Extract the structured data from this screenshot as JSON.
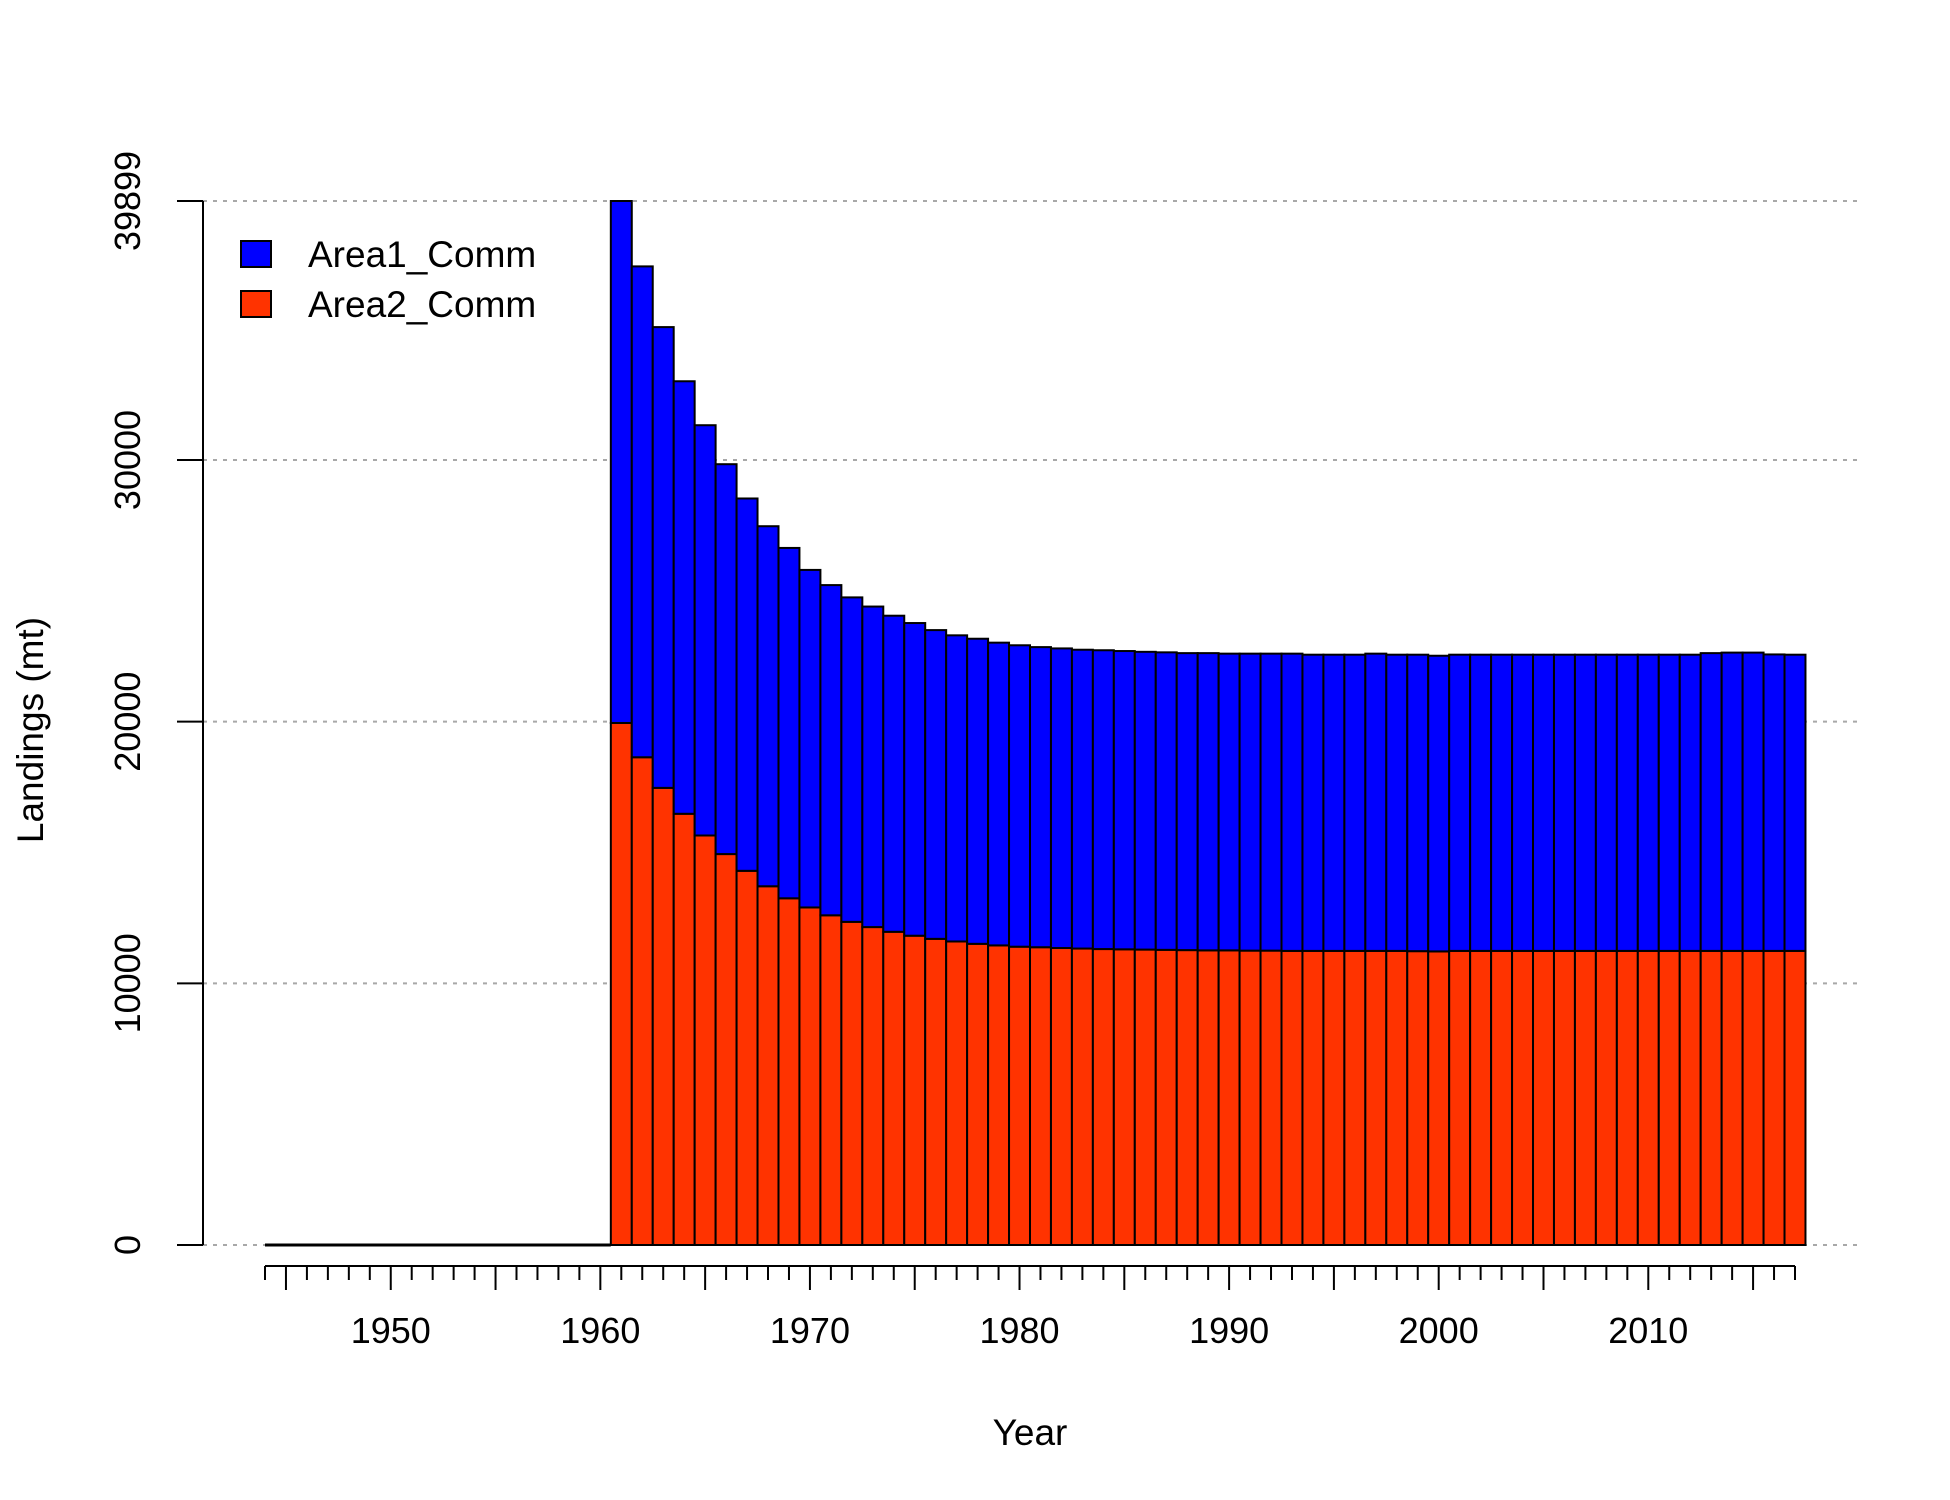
{
  "chart_data": {
    "type": "bar",
    "stacked": true,
    "xlabel": "Year",
    "ylabel": "Landings (mt)",
    "xlim": [
      1944,
      2017
    ],
    "ylim": [
      0,
      39899
    ],
    "y_ticks": [
      0,
      10000,
      20000,
      30000,
      39899
    ],
    "y_tick_labels": [
      "0",
      "10000",
      "20000",
      "30000",
      "39899"
    ],
    "x_tick_labels": [
      "1950",
      "1960",
      "1970",
      "1980",
      "1990",
      "2000",
      "2010"
    ],
    "grid": "horizontal dotted at y ticks",
    "legend_position": "top-left",
    "categories": [
      1961,
      1962,
      1963,
      1964,
      1965,
      1966,
      1967,
      1968,
      1969,
      1970,
      1971,
      1972,
      1973,
      1974,
      1975,
      1976,
      1977,
      1978,
      1979,
      1980,
      1981,
      1982,
      1983,
      1984,
      1985,
      1986,
      1987,
      1988,
      1989,
      1990,
      1991,
      1992,
      1993,
      1994,
      1995,
      1996,
      1997,
      1998,
      1999,
      2000,
      2001,
      2002,
      2003,
      2004,
      2005,
      2006,
      2007,
      2008,
      2009,
      2010,
      2011,
      2012,
      2013,
      2014,
      2015,
      2016,
      2017
    ],
    "series": [
      {
        "name": "Area2_Comm",
        "color": "#FF3300",
        "values": [
          19950,
          18640,
          17470,
          16480,
          15650,
          14940,
          14300,
          13710,
          13250,
          12900,
          12600,
          12350,
          12150,
          11970,
          11820,
          11700,
          11600,
          11510,
          11450,
          11400,
          11380,
          11350,
          11330,
          11310,
          11300,
          11290,
          11280,
          11270,
          11260,
          11260,
          11250,
          11250,
          11240,
          11240,
          11240,
          11240,
          11240,
          11240,
          11230,
          11220,
          11240,
          11240,
          11240,
          11240,
          11240,
          11240,
          11240,
          11240,
          11240,
          11240,
          11240,
          11240,
          11240,
          11240,
          11240,
          11240,
          11240
        ]
      },
      {
        "name": "Area1_Comm",
        "color": "#0000FF",
        "values": [
          19949,
          18760,
          17610,
          16530,
          15680,
          14900,
          14230,
          13760,
          13390,
          12900,
          12620,
          12400,
          12250,
          12080,
          11950,
          11800,
          11700,
          11660,
          11570,
          11520,
          11470,
          11450,
          11420,
          11420,
          11400,
          11380,
          11370,
          11350,
          11360,
          11340,
          11350,
          11350,
          11360,
          11320,
          11320,
          11320,
          11360,
          11320,
          11330,
          11300,
          11320,
          11320,
          11320,
          11320,
          11320,
          11320,
          11320,
          11320,
          11320,
          11320,
          11320,
          11320,
          11380,
          11400,
          11400,
          11330,
          11320
        ]
      }
    ]
  }
}
